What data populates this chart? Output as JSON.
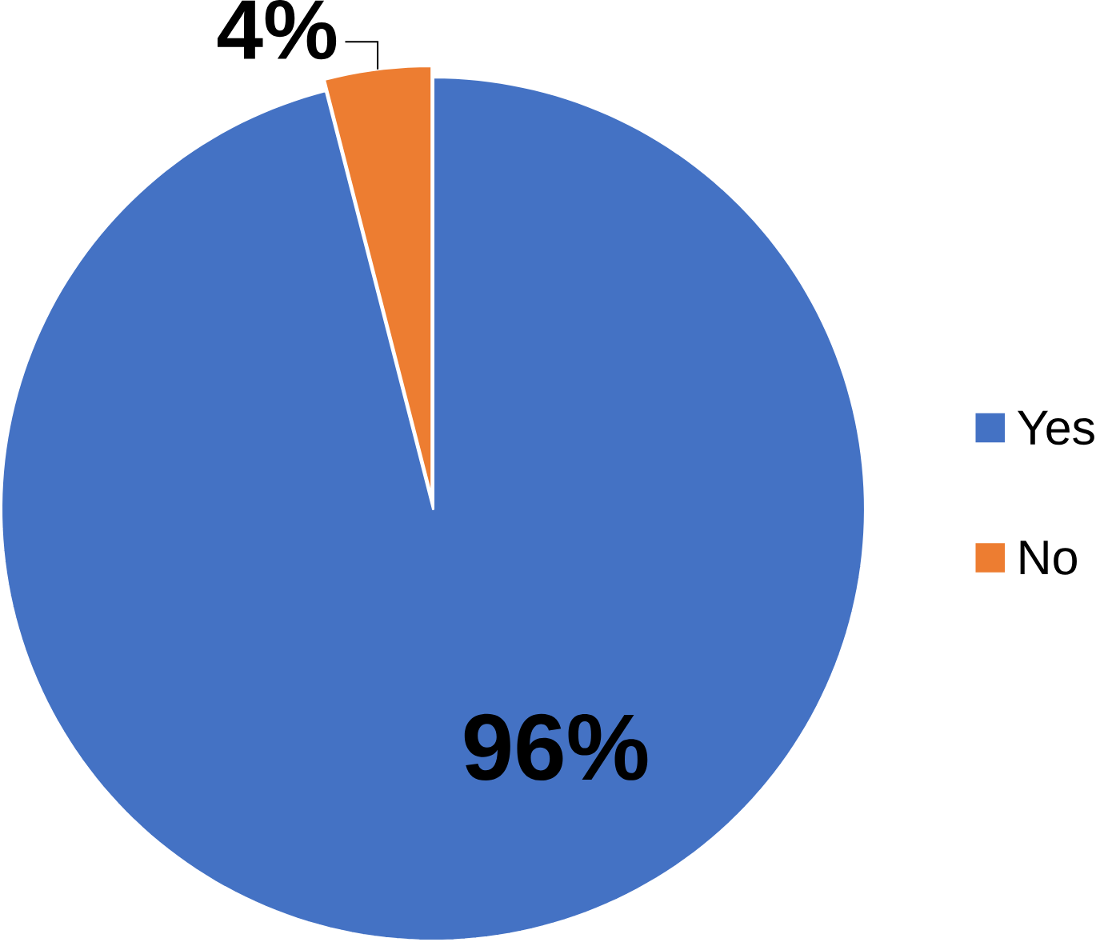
{
  "chart_data": {
    "type": "pie",
    "categories": [
      "Yes",
      "No"
    ],
    "values": [
      96,
      4
    ],
    "colors": [
      "#4472c4",
      "#ed7d31"
    ],
    "value_labels": [
      "96%",
      "4%"
    ],
    "legend": "right"
  }
}
